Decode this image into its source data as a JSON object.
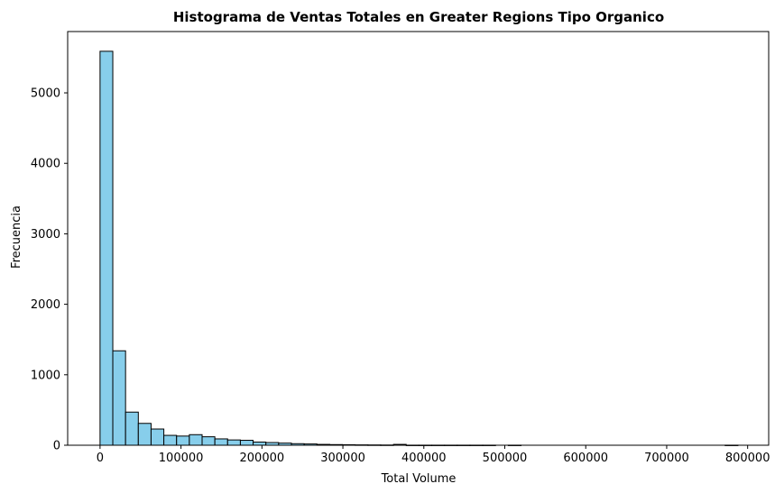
{
  "chart_data": {
    "type": "bar",
    "title": "Histograma de Ventas Totales en Greater Regions  Tipo Organico",
    "xlabel": "Total Volume",
    "ylabel": "Frecuencia",
    "xlim": [
      -40000,
      826000
    ],
    "ylim": [
      0,
      5870
    ],
    "xticks": [
      0,
      100000,
      200000,
      300000,
      400000,
      500000,
      600000,
      700000,
      800000
    ],
    "xtick_labels": [
      "0",
      "100000",
      "200000",
      "300000",
      "400000",
      "500000",
      "600000",
      "700000",
      "800000"
    ],
    "yticks": [
      0,
      1000,
      2000,
      3000,
      4000,
      5000
    ],
    "ytick_labels": [
      "0",
      "1000",
      "2000",
      "3000",
      "4000",
      "5000"
    ],
    "bin_start": 0,
    "bin_width": 15760,
    "bin_counts": [
      5590,
      1340,
      470,
      310,
      230,
      140,
      130,
      150,
      120,
      90,
      75,
      70,
      45,
      38,
      30,
      22,
      18,
      12,
      9,
      7,
      5,
      4,
      3,
      12,
      1,
      1,
      1,
      1,
      1,
      1,
      1,
      0,
      1,
      0,
      0,
      0,
      0,
      0,
      0,
      0,
      0,
      0,
      0,
      0,
      0,
      0,
      0,
      0,
      0,
      1
    ],
    "bar_color": "#87CEEB",
    "edge_color": "#000000",
    "grid": false,
    "legend": false
  }
}
